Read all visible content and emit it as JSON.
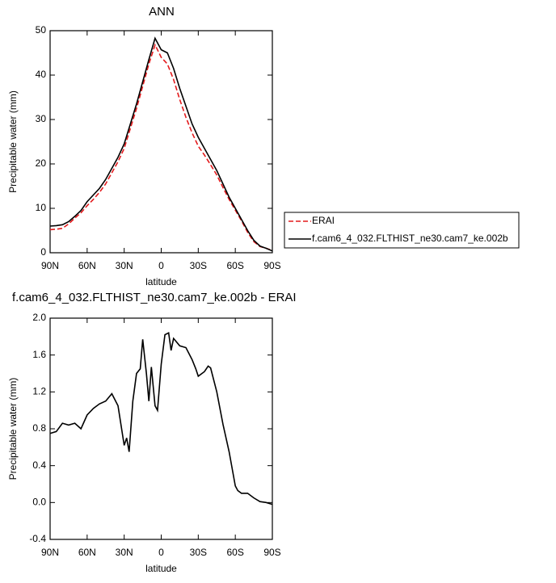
{
  "chart_data": [
    {
      "type": "line",
      "title": "ANN",
      "x_label": "latitude",
      "y_label": "Precipitable water (mm)",
      "xlim": [
        90,
        -90
      ],
      "ylim": [
        0,
        50
      ],
      "xticks": [
        {
          "value": 90,
          "label": "90N"
        },
        {
          "value": 60,
          "label": "60N"
        },
        {
          "value": 30,
          "label": "30N"
        },
        0,
        {
          "value": -30,
          "label": "30S"
        },
        {
          "value": -60,
          "label": "60S"
        },
        {
          "value": -90,
          "label": "90S"
        }
      ],
      "yticks": [
        0,
        10,
        20,
        30,
        40,
        50
      ],
      "legend": "outside right",
      "x": [
        90,
        85,
        80,
        75,
        70,
        65,
        60,
        55,
        50,
        45,
        40,
        35,
        30,
        25,
        20,
        15,
        10,
        5,
        0,
        -5,
        -10,
        -15,
        -20,
        -25,
        -30,
        -35,
        -40,
        -45,
        -50,
        -55,
        -60,
        -65,
        -70,
        -75,
        -80,
        -85,
        -90
      ],
      "series": [
        {
          "name": "ERAI",
          "color": "#e31a1c",
          "line_style": "dashed",
          "values": [
            5.2,
            5.3,
            5.5,
            6.5,
            7.8,
            9.0,
            10.6,
            12.0,
            13.6,
            15.5,
            18.0,
            20.5,
            23.5,
            28,
            32.5,
            37.5,
            42.5,
            46.8,
            44,
            42.5,
            39,
            34.5,
            30.5,
            27,
            24,
            22,
            19.8,
            17.5,
            14.7,
            12,
            9.6,
            7.2,
            4.6,
            2.5,
            1.4,
            1.0,
            0.5
          ]
        },
        {
          "name": "f.cam6_4_032.FLTHIST_ne30.cam7_ke.002b",
          "color": "#000000",
          "line_style": "solid",
          "values": [
            6.0,
            6.1,
            6.3,
            7.0,
            8.2,
            9.5,
            11.5,
            13.0,
            14.5,
            16.5,
            19.0,
            21.5,
            24.5,
            29,
            33.5,
            38.5,
            43.5,
            48.3,
            45.7,
            45.0,
            41.5,
            37,
            33,
            29,
            26,
            23.5,
            21,
            18.5,
            15.5,
            12.5,
            10,
            7.5,
            5,
            2.8,
            1.5,
            1.0,
            0.4
          ]
        }
      ]
    },
    {
      "type": "line",
      "title": "f.cam6_4_032.FLTHIST_ne30.cam7_ke.002b - ERAI",
      "x_label": "latitude",
      "y_label": "Precipitable water (mm)",
      "xlim": [
        90,
        -90
      ],
      "ylim": [
        -0.4,
        2.0
      ],
      "xticks": [
        {
          "value": 90,
          "label": "90N"
        },
        {
          "value": 60,
          "label": "60N"
        },
        {
          "value": 30,
          "label": "30N"
        },
        0,
        {
          "value": -30,
          "label": "30S"
        },
        {
          "value": -60,
          "label": "60S"
        },
        {
          "value": -90,
          "label": "90S"
        }
      ],
      "yticks": [
        -0.4,
        {
          "value": 0,
          "label": "0.0"
        },
        0.4,
        0.8,
        1.2,
        1.6,
        {
          "value": 2,
          "label": "2.0"
        }
      ],
      "color": "#000000",
      "x": [
        90,
        85,
        80,
        75,
        70,
        65,
        60,
        55,
        50,
        45,
        40,
        35,
        30,
        28,
        26,
        23,
        20,
        17,
        15,
        12,
        10,
        8,
        5,
        3,
        0,
        -3,
        -6,
        -8,
        -10,
        -15,
        -20,
        -25,
        -28,
        -30,
        -35,
        -38,
        -40,
        -45,
        -50,
        -55,
        -60,
        -62,
        -65,
        -70,
        -75,
        -80,
        -85,
        -90
      ],
      "values": [
        0.75,
        0.77,
        0.86,
        0.84,
        0.86,
        0.8,
        0.95,
        1.02,
        1.07,
        1.1,
        1.18,
        1.05,
        0.62,
        0.7,
        0.55,
        1.1,
        1.4,
        1.45,
        1.77,
        1.4,
        1.1,
        1.47,
        1.05,
        1.0,
        1.5,
        1.82,
        1.84,
        1.65,
        1.78,
        1.7,
        1.68,
        1.55,
        1.45,
        1.37,
        1.42,
        1.48,
        1.46,
        1.2,
        0.85,
        0.55,
        0.18,
        0.13,
        0.1,
        0.1,
        0.05,
        0.01,
        0.0,
        -0.02
      ]
    }
  ]
}
